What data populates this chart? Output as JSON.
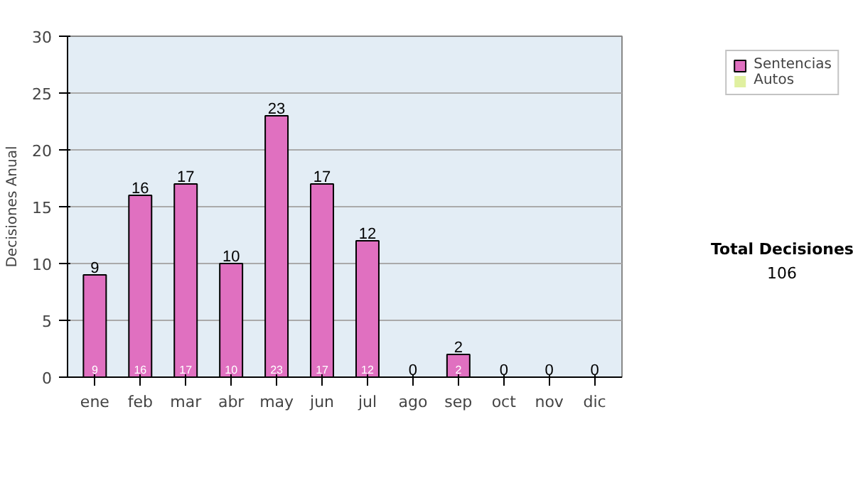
{
  "chart_data": {
    "type": "bar",
    "stacked": true,
    "ylabel": "Decisiones Anual",
    "categories": [
      "ene",
      "feb",
      "mar",
      "abr",
      "may",
      "jun",
      "jul",
      "ago",
      "sep",
      "oct",
      "nov",
      "dic"
    ],
    "series": [
      {
        "name": "Sentencias",
        "color": "#e070c0",
        "values": [
          9,
          16,
          17,
          10,
          23,
          17,
          12,
          0,
          2,
          0,
          0,
          0
        ],
        "value_labels": [
          "9",
          "16",
          "17",
          "10",
          "23",
          "17",
          "12",
          null,
          "2",
          null,
          null,
          null
        ]
      },
      {
        "name": "Autos",
        "color": "#e0f0a0",
        "values": [
          0,
          0,
          0,
          0,
          0,
          0,
          0,
          0,
          0,
          0,
          0,
          0
        ]
      }
    ],
    "totals": [
      "9",
      "16",
      "17",
      "10",
      "23",
      "17",
      "12",
      "0",
      "2",
      "0",
      "0",
      "0"
    ],
    "ylim": [
      0,
      30
    ],
    "yticks": [
      0,
      5,
      10,
      15,
      20,
      25,
      30
    ],
    "grid": "y",
    "legend": "right",
    "annotations": [
      "Total Decisiones",
      "106"
    ]
  }
}
